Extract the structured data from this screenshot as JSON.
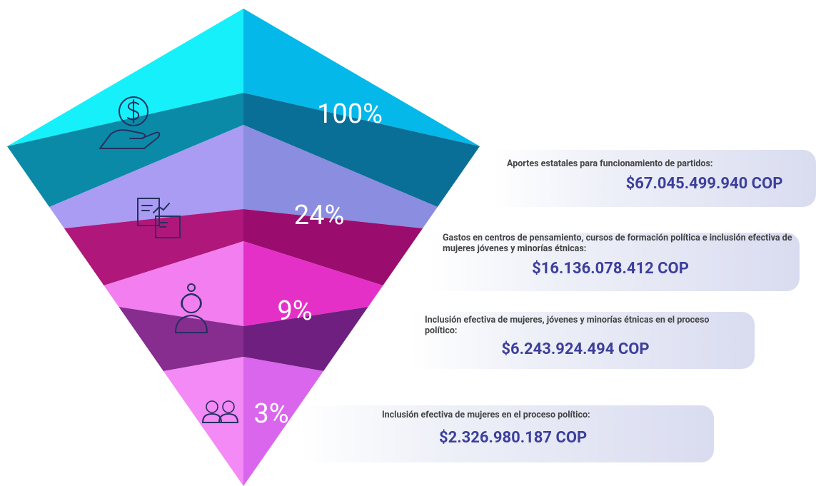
{
  "levels": [
    {
      "percent": "100%",
      "label": "Aportes estatales para funcionamiento de partidos:",
      "amount": "$67.045.499.940 COP"
    },
    {
      "percent": "24%",
      "label": "Gastos en centros de pensamiento, cursos de formación política e inclusión efectiva de mujeres jóvenes y minorías étnicas:",
      "amount": "$16.136.078.412 COP"
    },
    {
      "percent": "9%",
      "label": "Inclusión efectiva de mujeres, jóvenes y minorías étnicas en el proceso político:",
      "amount": "$6.243.924.494 COP"
    },
    {
      "percent": "3%",
      "label": "Inclusión efectiva de mujeres en el proceso político:",
      "amount": "$2.326.980.187 COP"
    }
  ]
}
